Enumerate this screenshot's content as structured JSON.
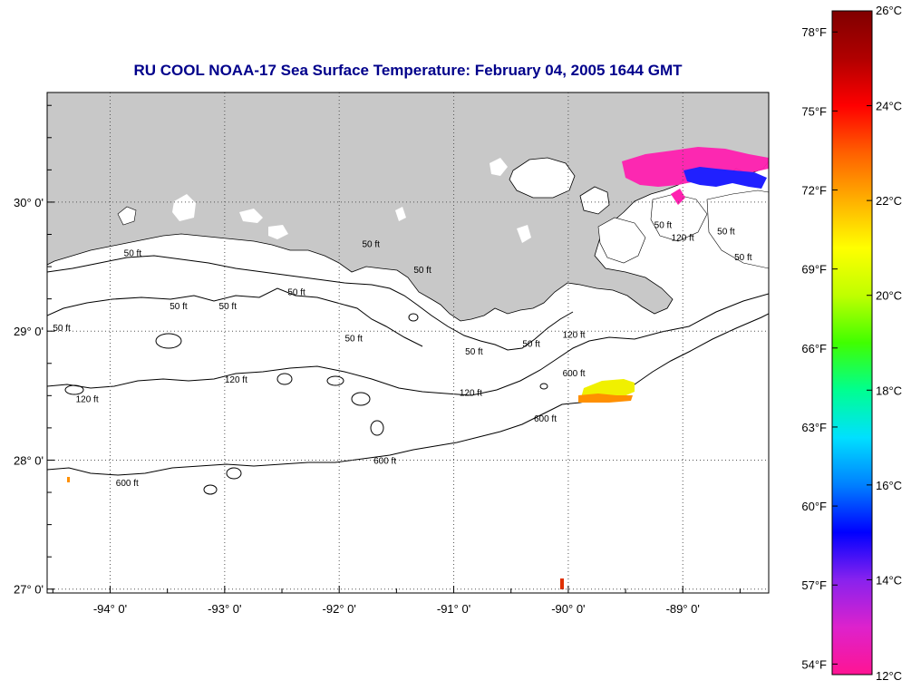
{
  "title": "RU COOL  NOAA-17  Sea Surface Temperature:  February 04, 2005 1644 GMT",
  "colors": {
    "title": "#00008b",
    "land": "#c8c8c8",
    "ocean": "#ffffff",
    "contour": "#000000",
    "grid": "#555555"
  },
  "map": {
    "lon_range": [
      -94.55,
      -88.25
    ],
    "lat_range": [
      26.97,
      30.85
    ],
    "lon_ticks": [
      {
        "value": -94,
        "label": "-94° 0'"
      },
      {
        "value": -93,
        "label": "-93° 0'"
      },
      {
        "value": -92,
        "label": "-92° 0'"
      },
      {
        "value": -91,
        "label": "-91° 0'"
      },
      {
        "value": -90,
        "label": "-90° 0'"
      },
      {
        "value": -89,
        "label": "-89° 0'"
      }
    ],
    "lat_ticks": [
      {
        "value": 30,
        "label": "30° 0'"
      },
      {
        "value": 29,
        "label": "29° 0'"
      },
      {
        "value": 28,
        "label": "28° 0'"
      },
      {
        "value": 27,
        "label": "27° 0'"
      }
    ],
    "contour_labels": [
      {
        "text": "50 ft",
        "lon": -93.88,
        "lat": 29.58
      },
      {
        "text": "50 ft",
        "lon": -93.48,
        "lat": 29.17
      },
      {
        "text": "50 ft",
        "lon": -93.05,
        "lat": 29.17
      },
      {
        "text": "50 ft",
        "lon": -92.45,
        "lat": 29.28
      },
      {
        "text": "50 ft",
        "lon": -91.95,
        "lat": 28.92
      },
      {
        "text": "50 ft",
        "lon": -91.35,
        "lat": 29.45
      },
      {
        "text": "50 ft",
        "lon": -90.9,
        "lat": 28.82
      },
      {
        "text": "50 ft",
        "lon": -90.4,
        "lat": 28.88
      },
      {
        "text": "50 ft",
        "lon": -94.5,
        "lat": 29.0
      },
      {
        "text": "120 ft",
        "lon": -93.0,
        "lat": 28.6
      },
      {
        "text": "120 ft",
        "lon": -94.3,
        "lat": 28.45
      },
      {
        "text": "120 ft",
        "lon": -90.95,
        "lat": 28.5
      },
      {
        "text": "120 ft",
        "lon": -90.05,
        "lat": 28.95
      },
      {
        "text": "600 ft",
        "lon": -90.05,
        "lat": 28.65
      },
      {
        "text": "600 ft",
        "lon": -90.3,
        "lat": 28.3
      },
      {
        "text": "600 ft",
        "lon": -91.7,
        "lat": 27.97
      },
      {
        "text": "600 ft",
        "lon": -93.95,
        "lat": 27.8
      },
      {
        "text": "50 ft",
        "lon": -91.8,
        "lat": 29.65
      },
      {
        "text": "50 ft",
        "lon": -89.25,
        "lat": 29.8
      },
      {
        "text": "120 ft",
        "lon": -89.1,
        "lat": 29.7
      },
      {
        "text": "50 ft",
        "lon": -88.7,
        "lat": 29.75
      },
      {
        "text": "50 ft",
        "lon": -88.55,
        "lat": 29.55
      }
    ]
  },
  "colorbar": {
    "celsius": [
      {
        "value": 26,
        "label": "26°C"
      },
      {
        "value": 24,
        "label": "24°C"
      },
      {
        "value": 22,
        "label": "22°C"
      },
      {
        "value": 20,
        "label": "20°C"
      },
      {
        "value": 18,
        "label": "18°C"
      },
      {
        "value": 16,
        "label": "16°C"
      },
      {
        "value": 14,
        "label": "14°C"
      },
      {
        "value": 12,
        "label": "12°C"
      }
    ],
    "fahrenheit": [
      {
        "value": 78,
        "label": "78°F"
      },
      {
        "value": 75,
        "label": "75°F"
      },
      {
        "value": 72,
        "label": "72°F"
      },
      {
        "value": 69,
        "label": "69°F"
      },
      {
        "value": 66,
        "label": "66°F"
      },
      {
        "value": 63,
        "label": "63°F"
      },
      {
        "value": 60,
        "label": "60°F"
      },
      {
        "value": 57,
        "label": "57°F"
      },
      {
        "value": 54,
        "label": "54°F"
      }
    ],
    "range_c": [
      12,
      26
    ],
    "stops": [
      "#ff1493",
      "#dd22cc",
      "#8822ee",
      "#0000ff",
      "#0080ff",
      "#00e0ff",
      "#00ff90",
      "#40ff00",
      "#c0ff00",
      "#ffff00",
      "#ffb000",
      "#ff6000",
      "#ff0000",
      "#b00000",
      "#800000"
    ]
  }
}
